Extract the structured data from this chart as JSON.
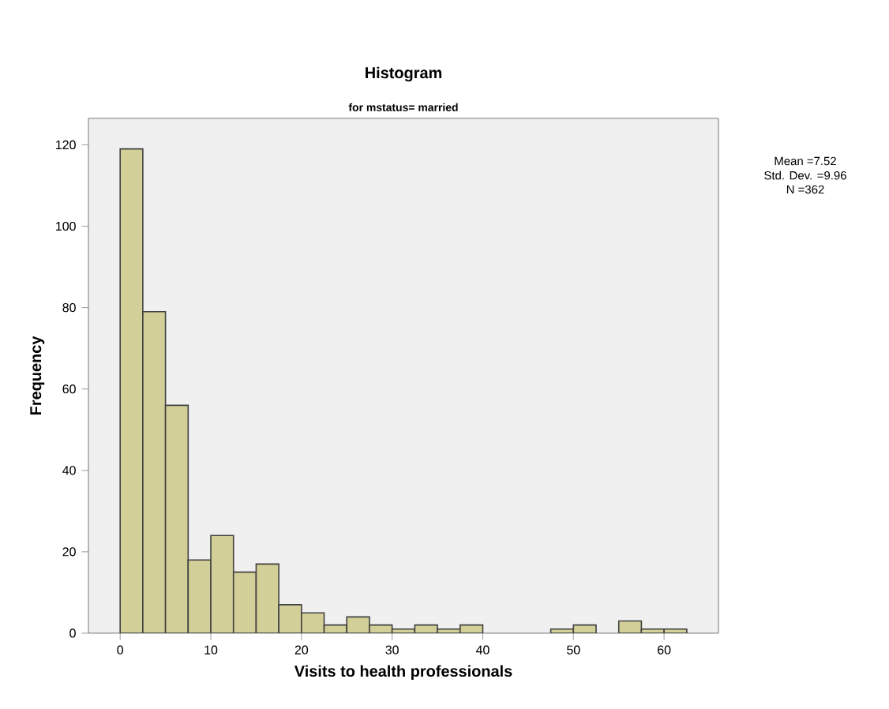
{
  "chart_data": {
    "type": "histogram",
    "title": "Histogram",
    "subtitle": "for mstatus= married",
    "xlabel": "Visits to health professionals",
    "ylabel": "Frequency",
    "annotations": [
      "Mean =7.52",
      "Std. Dev. =9.96",
      "N =362"
    ],
    "bins": [
      0,
      2.5,
      5,
      7.5,
      10,
      12.5,
      15,
      17.5,
      20,
      22.5,
      25,
      27.5,
      30,
      32.5,
      35,
      37.5,
      40,
      42.5,
      45,
      47.5,
      50,
      52.5,
      55,
      57.5,
      60,
      62.5
    ],
    "values": [
      119,
      79,
      56,
      18,
      24,
      15,
      17,
      7,
      5,
      2,
      4,
      2,
      1,
      2,
      1,
      2,
      0,
      0,
      0,
      1,
      2,
      0,
      3,
      1,
      1
    ],
    "color": "#d3cf98",
    "xlim": [
      -3.5,
      66
    ],
    "ylim": [
      0,
      126.5
    ],
    "xticks": [
      0,
      10,
      20,
      30,
      40,
      50,
      60
    ],
    "yticks": [
      0,
      20,
      40,
      60,
      80,
      100,
      120
    ],
    "grid": false
  }
}
